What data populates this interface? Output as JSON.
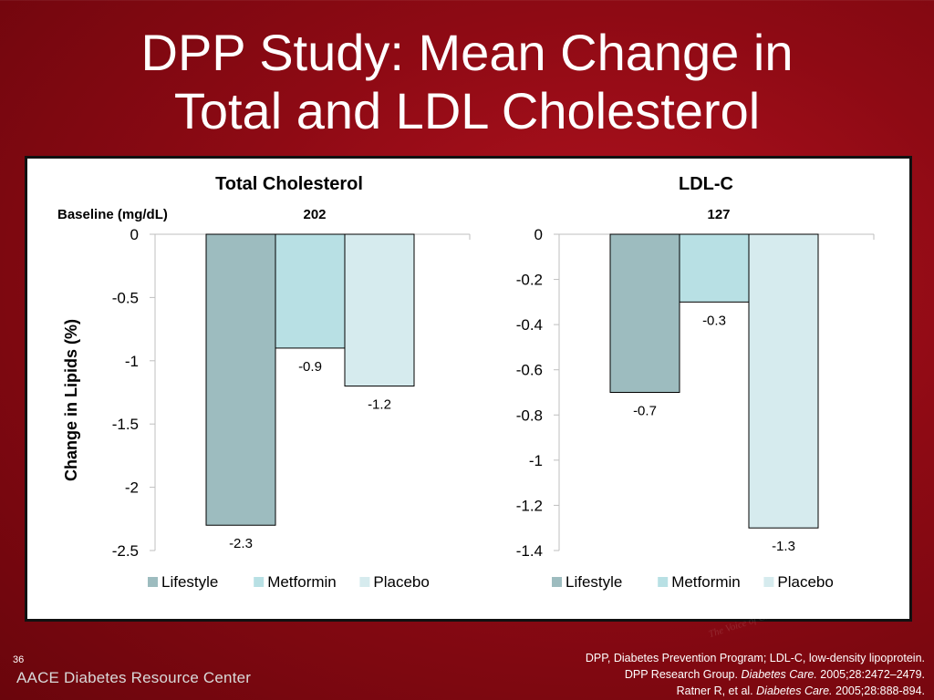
{
  "slide": {
    "title_line1": "DPP Study: Mean Change in",
    "title_line2": "Total and LDL Cholesterol",
    "page_number": "36",
    "org_name": "AACE Diabetes Resource Center",
    "watermark_text": "The Voice of Clinical Endocrinology",
    "footnote": {
      "line1": "DPP, Diabetes Prevention Program; LDL-C, low-density lipoprotein.",
      "line2_prefix": "DPP Research Group. ",
      "line2_journal": "Diabetes Care.",
      "line2_suffix": " 2005;28:2472–2479.",
      "line3_prefix": "Ratner R, et al. ",
      "line3_journal": "Diabetes Care.",
      "line3_suffix": " 2005;28:888-894."
    },
    "colors": {
      "background": "#9a0c16",
      "lifestyle": "#9dbcbf",
      "metformin": "#b8e0e4",
      "placebo": "#d6ebee"
    }
  },
  "baseline_label": "Baseline (mg/dL)",
  "chart_data": [
    {
      "type": "bar",
      "title": "Total Cholesterol",
      "baseline": "202",
      "ylabel": "Change in Lipids (%)",
      "ylim": [
        -2.5,
        0
      ],
      "yticks": [
        "0",
        "-0.5",
        "-1",
        "-1.5",
        "-2",
        "-2.5"
      ],
      "ytick_values": [
        0,
        -0.5,
        -1,
        -1.5,
        -2,
        -2.5
      ],
      "series": [
        {
          "name": "Lifestyle",
          "values": [
            -2.3
          ],
          "label": "-2.3",
          "color": "#9dbcbf"
        },
        {
          "name": "Metformin",
          "values": [
            -0.9
          ],
          "label": "-0.9",
          "color": "#b8e0e4"
        },
        {
          "name": "Placebo",
          "values": [
            -1.2
          ],
          "label": "-1.2",
          "color": "#d6ebee"
        }
      ],
      "legend_position": "bottom",
      "grid": false
    },
    {
      "type": "bar",
      "title": "LDL-C",
      "baseline": "127",
      "ylim": [
        -1.4,
        0
      ],
      "yticks": [
        "0",
        "-0.2",
        "-0.4",
        "-0.6",
        "-0.8",
        "-1",
        "-1.2",
        "-1.4"
      ],
      "ytick_values": [
        0,
        -0.2,
        -0.4,
        -0.6,
        -0.8,
        -1,
        -1.2,
        -1.4
      ],
      "series": [
        {
          "name": "Lifestyle",
          "values": [
            -0.7
          ],
          "label": "-0.7",
          "color": "#9dbcbf"
        },
        {
          "name": "Metformin",
          "values": [
            -0.3
          ],
          "label": "-0.3",
          "color": "#b8e0e4"
        },
        {
          "name": "Placebo",
          "values": [
            -1.3
          ],
          "label": "-1.3",
          "color": "#d6ebee"
        }
      ],
      "legend_position": "bottom",
      "grid": false
    }
  ]
}
